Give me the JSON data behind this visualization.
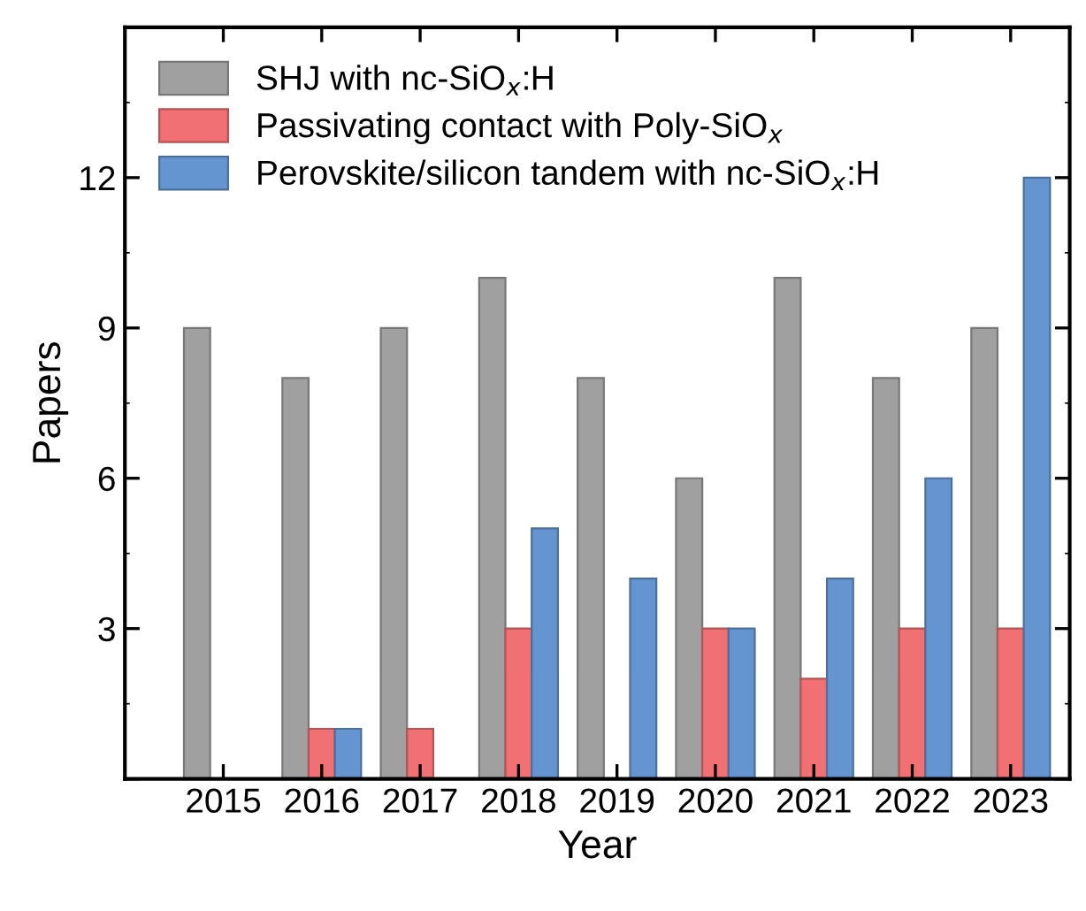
{
  "chart_data": {
    "type": "bar",
    "xlabel": "Year",
    "ylabel": "Papers",
    "categories": [
      "2015",
      "2016",
      "2017",
      "2018",
      "2019",
      "2020",
      "2021",
      "2022",
      "2023"
    ],
    "series": [
      {
        "name": "SHJ with nc-SiO$_{x}$:H",
        "color": "#a0a0a0",
        "values": [
          9,
          8,
          9,
          10,
          8,
          6,
          10,
          8,
          9
        ]
      },
      {
        "name": "Passivating contact with Poly-SiO$_{x}$",
        "color": "#f07073",
        "values": [
          null,
          1,
          1,
          3,
          null,
          3,
          2,
          3,
          3
        ]
      },
      {
        "name": "Perovskite/silicon tandem with nc-SiO$_{x}$:H",
        "color": "#6595d0",
        "values": [
          null,
          1,
          null,
          5,
          4,
          3,
          4,
          6,
          12
        ]
      }
    ],
    "ylim": [
      0,
      15
    ],
    "yticks": [
      {
        "value": 0,
        "label": null
      },
      3,
      6,
      9,
      12,
      {
        "value": 15,
        "label": null
      }
    ],
    "grid": false,
    "legend": "top left"
  }
}
